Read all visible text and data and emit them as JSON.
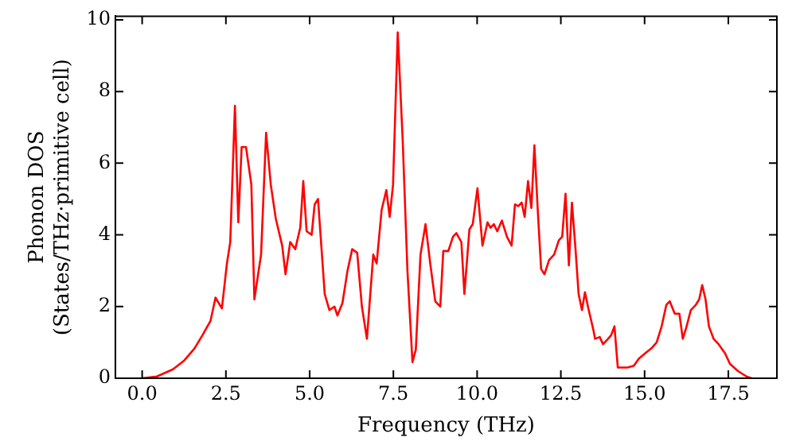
{
  "chart_data": {
    "type": "line",
    "xlabel": "Frequency (THz)",
    "ylabel": "Phonon DOS\n(States/THz·primitive cell)",
    "xlim": [
      -0.8,
      18.95
    ],
    "ylim": [
      0,
      10.1
    ],
    "xticks": [
      {
        "value": 0,
        "label": "0.0"
      },
      {
        "value": 2.5,
        "label": "2.5"
      },
      {
        "value": 5,
        "label": "5.0"
      },
      {
        "value": 7.5,
        "label": "7.5"
      },
      {
        "value": 10,
        "label": "10.0"
      },
      {
        "value": 12.5,
        "label": "12.5"
      },
      {
        "value": 15,
        "label": "15.0"
      },
      {
        "value": 17.5,
        "label": "17.5"
      }
    ],
    "yticks": [
      0,
      2,
      4,
      6,
      8,
      10
    ],
    "grid": false,
    "legend": false,
    "marker": "none",
    "line_style": "solid",
    "series": [
      {
        "color": "#ff0000",
        "x": [
          0,
          0.44,
          0.92,
          1.26,
          1.56,
          1.8,
          2.04,
          2.19,
          2.38,
          2.53,
          2.63,
          2.77,
          2.87,
          2.97,
          3.1,
          3.26,
          3.35,
          3.55,
          3.7,
          3.84,
          3.99,
          4.18,
          4.28,
          4.42,
          4.57,
          4.72,
          4.81,
          4.91,
          5.06,
          5.15,
          5.25,
          5.45,
          5.59,
          5.74,
          5.83,
          5.98,
          6.13,
          6.27,
          6.42,
          6.56,
          6.71,
          6.9,
          7.0,
          7.15,
          7.29,
          7.39,
          7.49,
          7.63,
          7.78,
          7.92,
          8.07,
          8.17,
          8.31,
          8.46,
          8.6,
          8.75,
          8.9,
          8.99,
          9.14,
          9.28,
          9.38,
          9.53,
          9.62,
          9.77,
          9.87,
          10.01,
          10.16,
          10.31,
          10.4,
          10.5,
          10.6,
          10.74,
          10.89,
          11.03,
          11.13,
          11.23,
          11.33,
          11.42,
          11.52,
          11.62,
          11.71,
          11.81,
          11.91,
          12.01,
          12.15,
          12.3,
          12.44,
          12.54,
          12.64,
          12.74,
          12.83,
          12.93,
          13.03,
          13.13,
          13.22,
          13.32,
          13.47,
          13.52,
          13.66,
          13.76,
          13.91,
          14.0,
          14.1,
          14.2,
          14.49,
          14.68,
          14.83,
          15.02,
          15.22,
          15.36,
          15.51,
          15.65,
          15.75,
          15.9,
          16.04,
          16.14,
          16.24,
          16.38,
          16.53,
          16.63,
          16.72,
          16.82,
          16.92,
          17.06,
          17.21,
          17.4,
          17.55,
          17.79,
          18.04,
          18.19
        ],
        "values": [
          0,
          0.05,
          0.25,
          0.5,
          0.83,
          1.2,
          1.6,
          2.25,
          1.95,
          3.2,
          3.8,
          7.6,
          4.35,
          6.45,
          6.45,
          5.4,
          2.2,
          3.45,
          6.85,
          5.4,
          4.45,
          3.7,
          2.9,
          3.8,
          3.6,
          4.2,
          5.5,
          4.1,
          4.0,
          4.85,
          5.0,
          2.35,
          1.9,
          2.0,
          1.75,
          2.1,
          3.0,
          3.6,
          3.5,
          2.0,
          1.1,
          3.45,
          3.2,
          4.7,
          5.25,
          4.5,
          5.4,
          9.65,
          6.6,
          3.0,
          0.45,
          0.8,
          3.45,
          4.3,
          3.2,
          2.15,
          2.0,
          3.55,
          3.55,
          3.95,
          4.05,
          3.8,
          2.35,
          4.15,
          4.3,
          5.3,
          3.7,
          4.35,
          4.2,
          4.3,
          4.1,
          4.4,
          3.95,
          3.7,
          4.85,
          4.8,
          4.9,
          4.5,
          5.5,
          4.75,
          6.5,
          4.7,
          3.05,
          2.9,
          3.3,
          3.45,
          3.85,
          3.95,
          5.15,
          3.15,
          4.9,
          3.7,
          2.35,
          1.9,
          2.4,
          1.95,
          1.35,
          1.1,
          1.15,
          0.95,
          1.1,
          1.2,
          1.45,
          0.3,
          0.3,
          0.35,
          0.55,
          0.7,
          0.85,
          1.0,
          1.45,
          2.05,
          2.15,
          1.8,
          1.8,
          1.1,
          1.4,
          1.9,
          2.05,
          2.2,
          2.6,
          2.2,
          1.45,
          1.1,
          0.95,
          0.7,
          0.4,
          0.2,
          0.05,
          0
        ]
      }
    ]
  }
}
